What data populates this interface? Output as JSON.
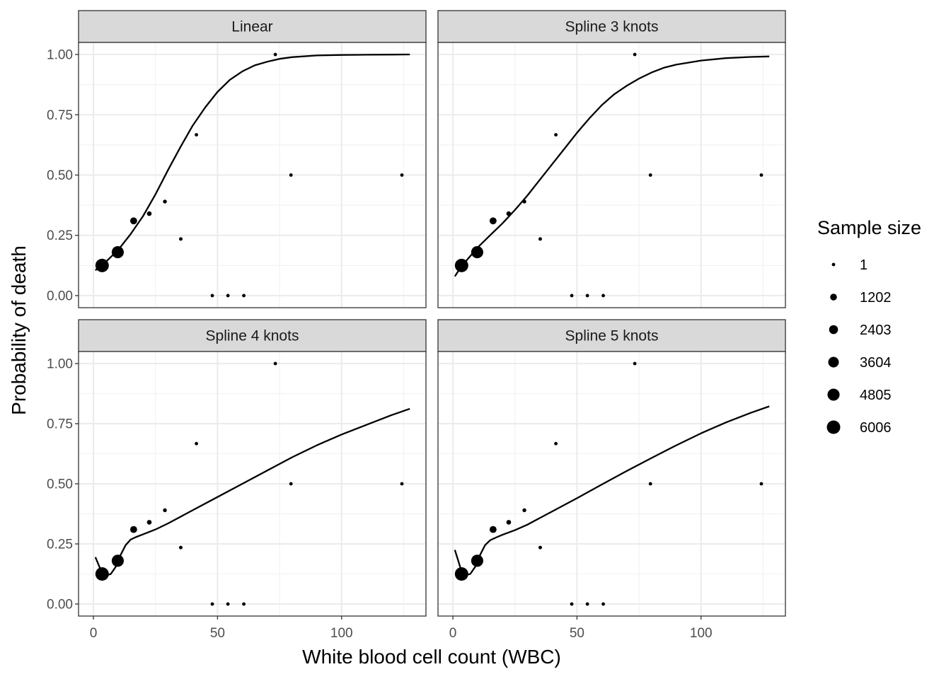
{
  "chart_data": {
    "type": "scatter",
    "xlabel": "White blood cell count (WBC)",
    "ylabel": "Probability of death",
    "xlim": [
      -6,
      134
    ],
    "ylim": [
      -0.05,
      1.05
    ],
    "x_ticks": [
      0,
      50,
      100
    ],
    "y_ticks": [
      0.0,
      0.25,
      0.5,
      0.75,
      1.0
    ],
    "y_tick_labels": [
      "0.00",
      "0.25",
      "0.50",
      "0.75",
      "1.00"
    ],
    "grid": true,
    "legend": {
      "title": "Sample size",
      "placement": "right",
      "entries": [
        "1",
        "1202",
        "2403",
        "3604",
        "4805",
        "6006"
      ],
      "values": [
        1,
        1202,
        2403,
        3604,
        4805,
        6006
      ]
    },
    "points": [
      {
        "x": 3.5,
        "y": 0.125,
        "n": 6006
      },
      {
        "x": 9.8,
        "y": 0.18,
        "n": 4805
      },
      {
        "x": 16.2,
        "y": 0.31,
        "n": 1300
      },
      {
        "x": 22.5,
        "y": 0.34,
        "n": 380
      },
      {
        "x": 28.8,
        "y": 0.39,
        "n": 120
      },
      {
        "x": 35.2,
        "y": 0.235,
        "n": 40
      },
      {
        "x": 41.5,
        "y": 0.667,
        "n": 5
      },
      {
        "x": 47.9,
        "y": 0.0,
        "n": 4
      },
      {
        "x": 54.2,
        "y": 0.0,
        "n": 3
      },
      {
        "x": 60.6,
        "y": 0.0,
        "n": 2
      },
      {
        "x": 73.3,
        "y": 1.0,
        "n": 1
      },
      {
        "x": 79.6,
        "y": 0.5,
        "n": 2
      },
      {
        "x": 124.3,
        "y": 0.5,
        "n": 2
      }
    ],
    "panels": [
      {
        "title": "Linear",
        "curve": {
          "x": [
            0.8,
            5,
            10,
            15,
            20,
            25,
            30,
            35,
            40,
            45,
            50,
            55,
            60,
            65,
            70,
            75,
            80,
            90,
            100,
            110,
            120,
            127.5
          ],
          "y": [
            0.105,
            0.14,
            0.19,
            0.255,
            0.33,
            0.42,
            0.52,
            0.615,
            0.705,
            0.78,
            0.845,
            0.895,
            0.93,
            0.955,
            0.97,
            0.982,
            0.989,
            0.996,
            0.998,
            0.999,
            0.9995,
            1.0
          ]
        }
      },
      {
        "title": "Spline 3 knots",
        "curve": {
          "x": [
            0.8,
            3,
            5,
            10,
            15,
            20,
            25,
            30,
            35,
            40,
            45,
            50,
            55,
            60,
            65,
            70,
            75,
            80,
            85,
            90,
            100,
            110,
            120,
            127.5
          ],
          "y": [
            0.08,
            0.115,
            0.14,
            0.2,
            0.25,
            0.3,
            0.355,
            0.415,
            0.48,
            0.545,
            0.61,
            0.675,
            0.735,
            0.79,
            0.835,
            0.87,
            0.9,
            0.925,
            0.945,
            0.958,
            0.975,
            0.985,
            0.99,
            0.992
          ]
        }
      },
      {
        "title": "Spline 4 knots",
        "curve": {
          "x": [
            0.8,
            2,
            3.5,
            5,
            7,
            9,
            11,
            13,
            15,
            17,
            20,
            25,
            30,
            40,
            50,
            60,
            70,
            80,
            90,
            100,
            110,
            120,
            127.5
          ],
          "y": [
            0.195,
            0.165,
            0.128,
            0.118,
            0.125,
            0.155,
            0.205,
            0.245,
            0.268,
            0.278,
            0.29,
            0.31,
            0.335,
            0.39,
            0.445,
            0.5,
            0.555,
            0.61,
            0.66,
            0.705,
            0.745,
            0.785,
            0.812
          ]
        }
      },
      {
        "title": "Spline 5 knots",
        "curve": {
          "x": [
            0.8,
            2,
            3.5,
            5,
            7,
            9,
            11,
            13,
            15,
            17,
            20,
            25,
            30,
            40,
            50,
            60,
            70,
            80,
            90,
            100,
            110,
            120,
            127.5
          ],
          "y": [
            0.225,
            0.185,
            0.135,
            0.12,
            0.125,
            0.155,
            0.205,
            0.245,
            0.265,
            0.275,
            0.288,
            0.307,
            0.33,
            0.385,
            0.44,
            0.497,
            0.553,
            0.607,
            0.66,
            0.71,
            0.755,
            0.795,
            0.822
          ]
        }
      }
    ]
  }
}
